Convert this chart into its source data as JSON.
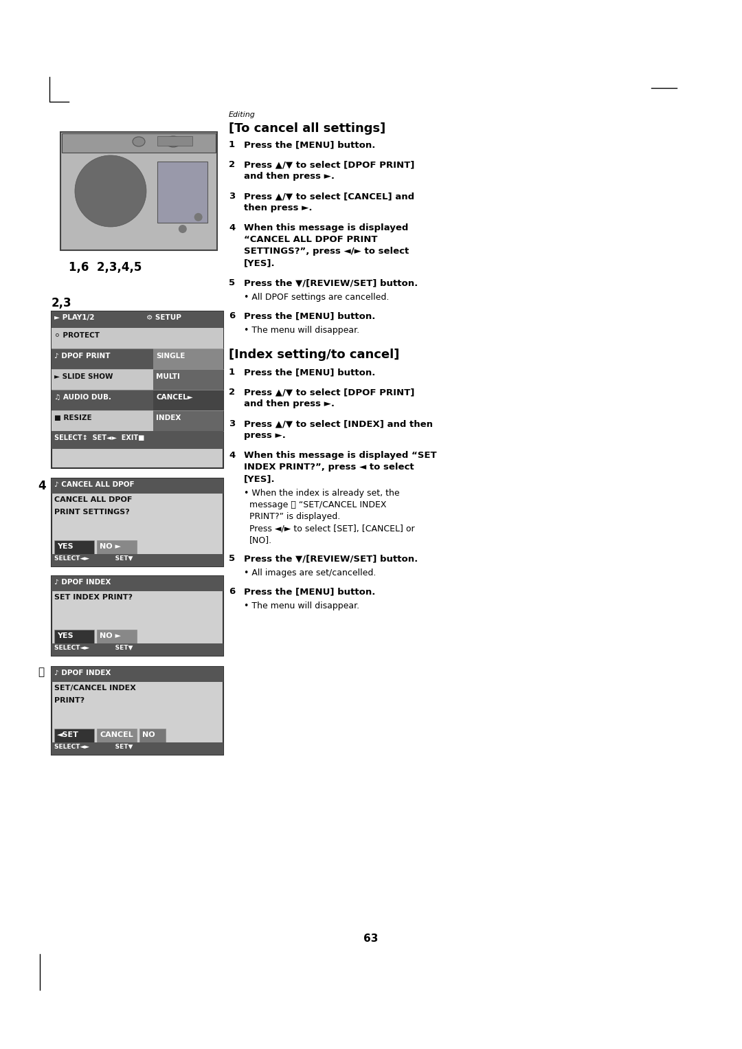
{
  "page_num": "63",
  "background_color": "#ffffff",
  "text_color": "#000000",
  "editing_label": "Editing",
  "section1_title": "[To cancel all settings]",
  "section2_title": "[Index setting/to cancel]",
  "section1_steps": [
    {
      "num": "1",
      "bold": "Press the [MENU] button."
    },
    {
      "num": "2",
      "bold": "Press ▲/▼ to select [DPOF PRINT]\nand then press ►."
    },
    {
      "num": "3",
      "bold": "Press ▲/▼ to select [CANCEL] and\nthen press ►."
    },
    {
      "num": "4",
      "bold": "When this message is displayed\n“CANCEL ALL DPOF PRINT\nSETTINGS?”, press ◄/► to select\n[YES]."
    },
    {
      "num": "5",
      "bold": "Press the ▼/[REVIEW/SET] button.",
      "bullet": "All DPOF settings are cancelled."
    },
    {
      "num": "6",
      "bold": "Press the [MENU] button.",
      "bullet": "The menu will disappear."
    }
  ],
  "section2_steps": [
    {
      "num": "1",
      "bold": "Press the [MENU] button."
    },
    {
      "num": "2",
      "bold": "Press ▲/▼ to select [DPOF PRINT]\nand then press ►."
    },
    {
      "num": "3",
      "bold": "Press ▲/▼ to select [INDEX] and then\npress ►."
    },
    {
      "num": "4",
      "bold": "When this message is displayed “SET\nINDEX PRINT?”, press ◄ to select\n[YES].",
      "bullet_lines": [
        "When the index is already set, the",
        "message Ⓐ “SET/CANCEL INDEX",
        "PRINT?” is displayed.",
        "Press ◄/► to select [SET], [CANCEL] or",
        "[NO]."
      ]
    },
    {
      "num": "5",
      "bold": "Press the ▼/[REVIEW/SET] button.",
      "bullet": "All images are set/cancelled."
    },
    {
      "num": "6",
      "bold": "Press the [MENU] button.",
      "bullet": "The menu will disappear."
    }
  ]
}
